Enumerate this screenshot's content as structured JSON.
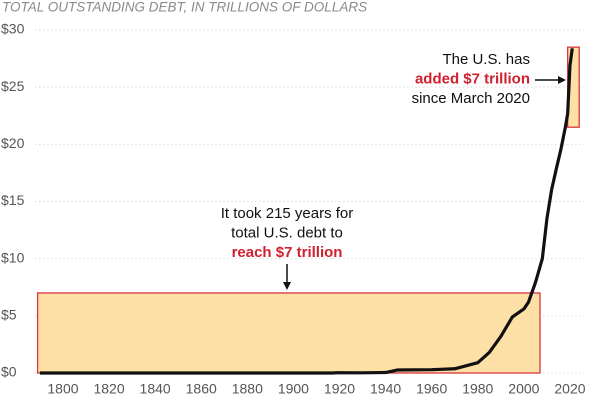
{
  "chart_data": {
    "type": "line",
    "title": "TOTAL OUTSTANDING DEBT, IN TRILLIONS OF DOLLARS",
    "x": [
      1790,
      1800,
      1850,
      1860,
      1865,
      1900,
      1917,
      1919,
      1930,
      1940,
      1945,
      1960,
      1970,
      1980,
      1985,
      1990,
      1995,
      2000,
      2002,
      2005,
      2008,
      2010,
      2012,
      2014,
      2016,
      2018,
      2019,
      2020,
      2021
    ],
    "series": [
      {
        "color": "#111111",
        "values": [
          7e-05,
          8e-05,
          6e-05,
          6e-05,
          0.0027,
          0.0012,
          0.003,
          0.027,
          0.016,
          0.043,
          0.26,
          0.29,
          0.37,
          0.9,
          1.8,
          3.2,
          4.9,
          5.6,
          6.2,
          7.9,
          10,
          13.5,
          16,
          17.8,
          19.5,
          21.5,
          22.7,
          26.9,
          28.4
        ]
      }
    ],
    "xlim": [
      1788,
      2026
    ],
    "xticks": [
      1800,
      1820,
      1840,
      1860,
      1880,
      1900,
      1920,
      1940,
      1960,
      1980,
      2000,
      2020
    ],
    "ylim": [
      0,
      30
    ],
    "yticks": [
      {
        "value": 0,
        "label": "$0"
      },
      {
        "value": 5,
        "label": "$5"
      },
      {
        "value": 10,
        "label": "$10"
      },
      {
        "value": 15,
        "label": "$15"
      },
      {
        "value": 20,
        "label": "$20"
      },
      {
        "value": 25,
        "label": "$25"
      },
      {
        "value": 30,
        "label": "$30"
      }
    ],
    "grid": true,
    "highlights": [
      {
        "x": [
          1789,
          2007
        ],
        "y": [
          0,
          7
        ],
        "color": "#fde0a6"
      },
      {
        "x": [
          2019,
          2024
        ],
        "y": [
          21.5,
          28.5
        ],
        "color": "#fde0a6"
      }
    ],
    "annotations": [
      {
        "text": [
          "The U.S. has",
          "added $7 trillion",
          "since March 2020"
        ],
        "highlight": 1
      },
      {
        "text": [
          "It took 215 years for",
          "total U.S. debt to",
          "reach $7 trillion"
        ],
        "highlight": 2
      }
    ]
  }
}
